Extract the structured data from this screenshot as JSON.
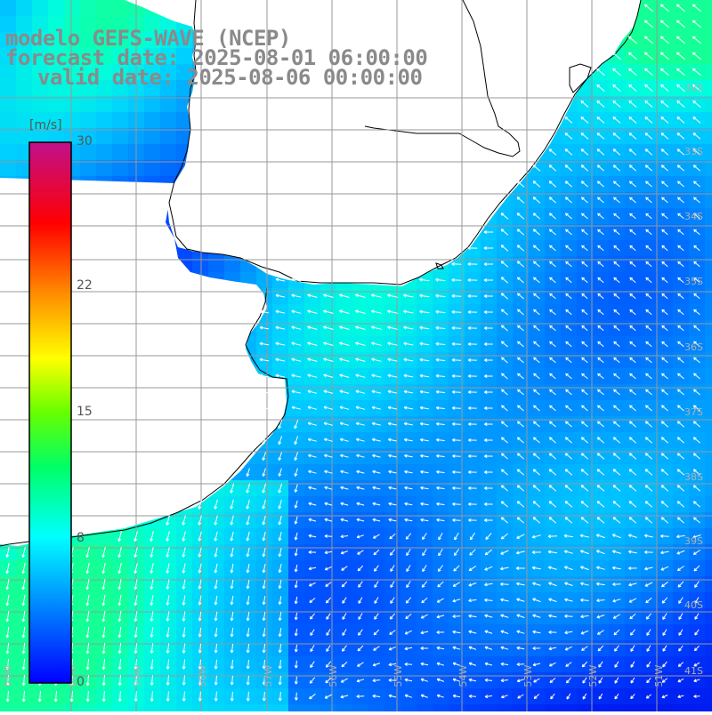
{
  "header": {
    "line1": "modelo GEFS-WAVE (NCEP)",
    "line2": "forecast date: 2025-08-01 06:00:00",
    "line3": "valid date: 2025-08-06 00:00:00"
  },
  "colorbar": {
    "unit": "[m/s]",
    "min": 0,
    "max": 30,
    "tick_labels": [
      "30",
      "22",
      "15",
      "8",
      "0"
    ],
    "tick_values": [
      30,
      22,
      15,
      8,
      0
    ],
    "colors": [
      "#0000ff",
      "#00b4ff",
      "#00ffff",
      "#00ff00",
      "#ffff00",
      "#ff8c00",
      "#ff0000",
      "#c0108c"
    ]
  },
  "map": {
    "lat_labels": [
      "32S",
      "33S",
      "34S",
      "35S",
      "36S",
      "37S",
      "38S",
      "39S",
      "40S",
      "41S"
    ],
    "lon_labels": [
      "61W",
      "60W",
      "59W",
      "58W",
      "57W",
      "56W",
      "55W",
      "54W",
      "53W",
      "52W",
      "51W"
    ],
    "land_color": "#ffffff",
    "grid_color": "#999999",
    "arrow_color": "#ffffff",
    "coast_color": "#000000"
  }
}
